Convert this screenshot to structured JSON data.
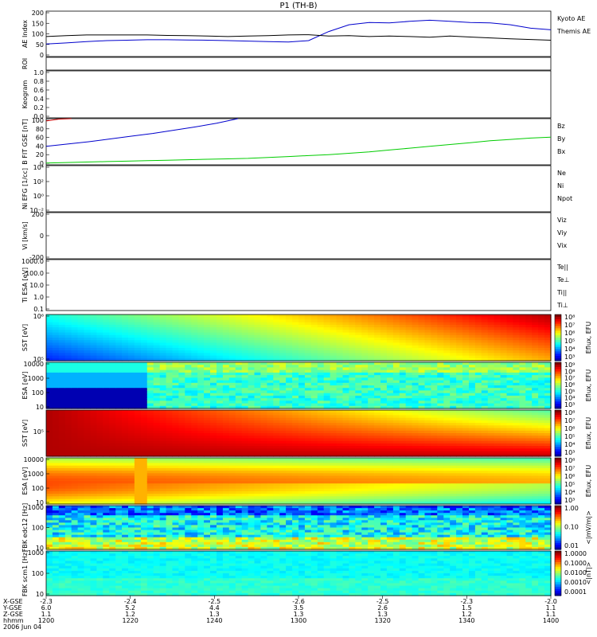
{
  "title": "P1 (TH-B)",
  "chart_data": [
    {
      "id": "ae",
      "type": "line",
      "ylabel": "AE Index",
      "ylim": [
        0,
        200
      ],
      "yticks": [
        "0",
        "50",
        "100",
        "150",
        "200"
      ],
      "series": [
        {
          "name": "Kyoto AE",
          "color": "#0000cc",
          "values": [
            55,
            60,
            66,
            70,
            72,
            74,
            74,
            73,
            72,
            70,
            68,
            66,
            64,
            70,
            110,
            140,
            150,
            148,
            155,
            160,
            155,
            150,
            148,
            140,
            125,
            118
          ]
        },
        {
          "name": "Themis AE",
          "color": "#000000",
          "values": [
            88,
            92,
            95,
            95,
            95,
            95,
            93,
            92,
            90,
            88,
            90,
            92,
            95,
            96,
            90,
            92,
            88,
            90,
            88,
            85,
            90,
            86,
            82,
            78,
            75,
            72
          ]
        }
      ]
    },
    {
      "id": "roi",
      "type": "line",
      "ylabel": "ROI",
      "yticks": []
    },
    {
      "id": "keogram",
      "type": "line",
      "ylabel": "Keogram",
      "ylim": [
        0,
        1
      ],
      "yticks": [
        "0.0",
        "0.2",
        "0.4",
        "0.6",
        "0.8",
        "1.0"
      ]
    },
    {
      "id": "bfield",
      "type": "line",
      "ylabel": "B FIT GSE [nT]",
      "ylim": [
        0,
        100
      ],
      "yticks": [
        "0",
        "20",
        "40",
        "60",
        "80",
        "100"
      ],
      "series": [
        {
          "name": "Bz",
          "color": "#cc0000",
          "values": [
            95,
            99,
            100
          ]
        },
        {
          "name": "By",
          "color": "#00cc00",
          "values": [
            4,
            5,
            6,
            7,
            8,
            9,
            10,
            11,
            12,
            13,
            14,
            16,
            18,
            20,
            22,
            25,
            28,
            32,
            36,
            40,
            44,
            48,
            52,
            55,
            58,
            60
          ]
        },
        {
          "name": "Bx",
          "color": "#0000cc",
          "values": [
            40,
            45,
            50,
            56,
            62,
            68,
            75,
            82,
            90,
            100
          ]
        }
      ]
    },
    {
      "id": "density",
      "type": "line",
      "ylabel": "Ni EFG [1/cc]",
      "yticks": [
        "10⁻²",
        "10⁰",
        "10²",
        "10⁴"
      ],
      "series": [
        {
          "name": "Ne",
          "color": "#cc0000"
        },
        {
          "name": "Ni",
          "color": "#000000"
        },
        {
          "name": "Npot",
          "color": "#0000cc"
        }
      ]
    },
    {
      "id": "velocity",
      "type": "line",
      "ylabel": "Vi [km/s]",
      "ylim": [
        -200,
        200
      ],
      "yticks": [
        "-200",
        "0",
        "200"
      ],
      "series": [
        {
          "name": "Viz",
          "color": "#cc0000"
        },
        {
          "name": "Viy",
          "color": "#00cc00"
        },
        {
          "name": "Vix",
          "color": "#0000cc"
        }
      ]
    },
    {
      "id": "temperature",
      "type": "line",
      "ylabel": "Ti ESA [eV]",
      "yticks": [
        "0.1",
        "1.0",
        "10.0",
        "100.0",
        "1000.0"
      ],
      "series": [
        {
          "name": "Te||",
          "color": "#000000"
        },
        {
          "name": "Te⊥",
          "color": "#cc0000"
        },
        {
          "name": "Ti||",
          "color": "#00cc00"
        },
        {
          "name": "Ti⊥",
          "color": "#0000cc"
        }
      ]
    },
    {
      "id": "sst_e",
      "type": "heatmap",
      "ylabel": "SST [eV]",
      "yticks": [
        "10⁵",
        "10⁶"
      ],
      "cbar": "Eflux, EFU",
      "cticks": [
        "10⁸",
        "10⁷",
        "10⁶",
        "10⁵",
        "10⁴",
        "10³"
      ]
    },
    {
      "id": "esa_e",
      "type": "heatmap",
      "ylabel": "ESA [eV]",
      "yticks": [
        "10",
        "100",
        "1000",
        "10000"
      ],
      "cbar": "Eflux, EFU",
      "cticks": [
        "10⁹",
        "10⁸",
        "10⁷",
        "10⁶",
        "10⁵",
        "10⁴",
        "10³"
      ]
    },
    {
      "id": "sst_i",
      "type": "heatmap",
      "ylabel": "SST [eV]",
      "yticks": [
        "10⁵"
      ],
      "cbar": "Eflux, EFU",
      "cticks": [
        "10⁸",
        "10⁷",
        "10⁶",
        "10⁵",
        "10⁴",
        "10³"
      ]
    },
    {
      "id": "esa_i",
      "type": "heatmap",
      "ylabel": "ESA [eV]",
      "yticks": [
        "10",
        "100",
        "1000",
        "10000"
      ],
      "cbar": "Eflux, EFU",
      "cticks": [
        "10⁸",
        "10⁷",
        "10⁶",
        "10⁵",
        "10⁴",
        "10³"
      ]
    },
    {
      "id": "fbk_e",
      "type": "heatmap",
      "ylabel": "FBK edc12 [Hz]",
      "yticks": [
        "10",
        "100",
        "1000"
      ],
      "cbar": "<|mV/m|>",
      "cticks": [
        "1.00",
        "0.10",
        "0.01"
      ]
    },
    {
      "id": "fbk_b",
      "type": "heatmap",
      "ylabel": "FBK scm1 [Hz]",
      "yticks": [
        "10",
        "100",
        "1000"
      ],
      "cbar": "<|nT|>",
      "cticks": [
        "1.0000",
        "0.1000",
        "0.0100",
        "0.0010",
        "0.0001"
      ]
    }
  ],
  "xaxis": {
    "row_labels": [
      "X-GSE",
      "Y-GSE",
      "Z-GSE",
      "hhmm",
      "2006 Jun 04"
    ],
    "ticks": [
      {
        "x": "-2.3",
        "y": "6.0",
        "z": "1.1",
        "t": "1200"
      },
      {
        "x": "-2.4",
        "y": "5.2",
        "z": "1.2",
        "t": "1220"
      },
      {
        "x": "-2.5",
        "y": "4.4",
        "z": "1.3",
        "t": "1240"
      },
      {
        "x": "-2.6",
        "y": "3.5",
        "z": "1.3",
        "t": "1300"
      },
      {
        "x": "-2.5",
        "y": "2.6",
        "z": "1.3",
        "t": "1320"
      },
      {
        "x": "-2.3",
        "y": "1.5",
        "z": "1.2",
        "t": "1340"
      },
      {
        "x": "-2.0",
        "y": "1.1",
        "z": "1.1",
        "t": "1400"
      }
    ]
  }
}
